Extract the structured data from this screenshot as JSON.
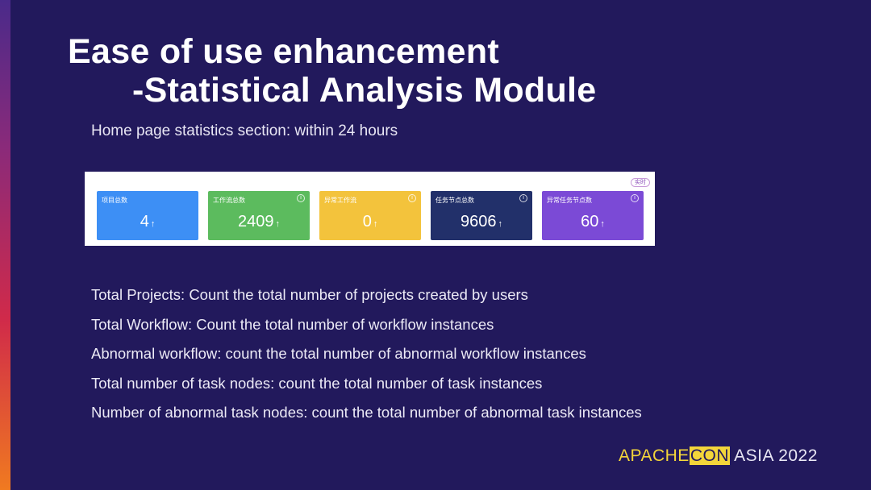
{
  "title": {
    "line1": "Ease of use enhancement",
    "line2": "-Statistical Analysis Module"
  },
  "subtitle": "Home page statistics section: within 24 hours",
  "stats_panel": {
    "badge": "实时",
    "cards": [
      {
        "label": "项目总数",
        "value": "4",
        "arrow": "↑",
        "color": "#3d8ff5",
        "info": false
      },
      {
        "label": "工作流总数",
        "value": "2409",
        "arrow": "↑",
        "color": "#5cbb5e",
        "info": true
      },
      {
        "label": "异常工作流",
        "value": "0",
        "arrow": "↑",
        "color": "#f3c33c",
        "info": true
      },
      {
        "label": "任务节点总数",
        "value": "9606",
        "arrow": "↑",
        "color": "#22306a",
        "info": true
      },
      {
        "label": "异常任务节点数",
        "value": "60",
        "arrow": "↑",
        "color": "#7b4ad6",
        "info": true
      }
    ],
    "info_icon": "ⓘ"
  },
  "descriptions": [
    "Total Projects: Count the total number of projects created by users",
    "Total Workflow: Count the total number of workflow instances",
    "Abnormal workflow: count the total number of abnormal workflow instances",
    "Total number of task nodes: count the total number of task instances",
    "Number of abnormal task nodes: count the total number of abnormal task instances"
  ],
  "logo": {
    "apache": "APACHE",
    "con": "CON",
    "rest": " ASIA 2022"
  }
}
